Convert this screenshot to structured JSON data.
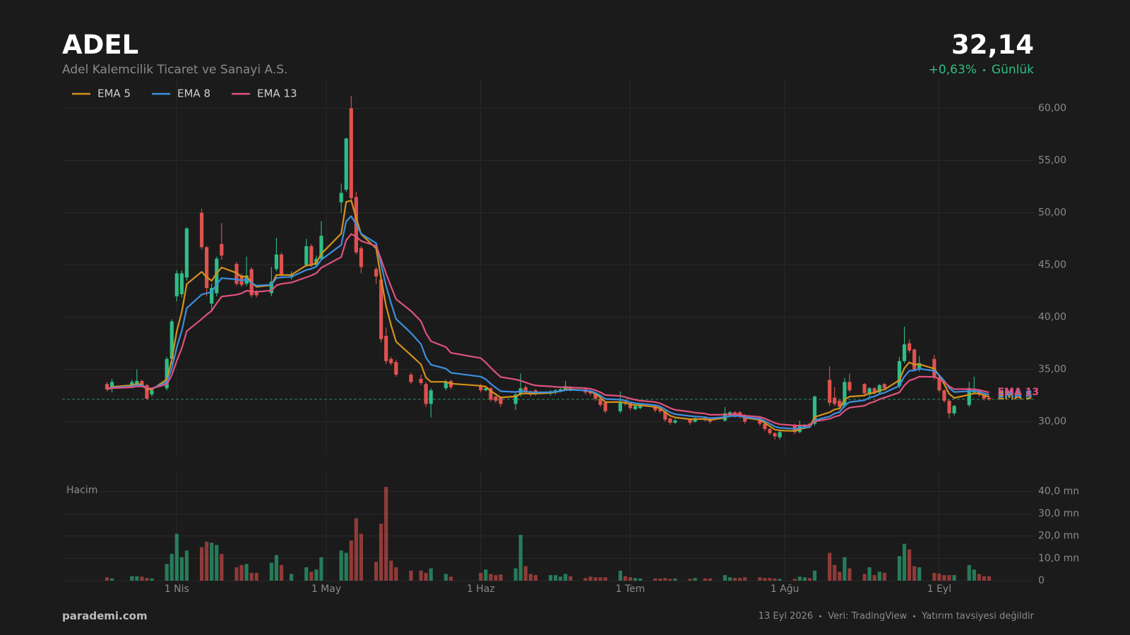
{
  "header": {
    "ticker": "ADEL",
    "company": "Adel Kalemcilik Ticaret ve Sanayi A.S.",
    "price": {
      "value": 32.14,
      "label": "32,14"
    },
    "change": "+0,63%",
    "period": "Günlük"
  },
  "footer": {
    "brand": "parademi.com",
    "date": "13 Eyl 2026",
    "source": "Veri: TradingView",
    "disclaimer": "Yatırım tavsiyesi değildir"
  },
  "chart_data": {
    "type": "candlestick",
    "up_color": "#2ebd85",
    "down_color": "#e0524f",
    "grid": true,
    "legend": "top-left",
    "xlim": [
      "03-09",
      "09-20"
    ],
    "xticks": [
      {
        "value": "04-01",
        "label": "1 Nis"
      },
      {
        "value": "05-01",
        "label": "1 May"
      },
      {
        "value": "06-01",
        "label": "1 Haz"
      },
      {
        "value": "07-01",
        "label": "1 Tem"
      },
      {
        "value": "08-01",
        "label": "1 Ağu"
      },
      {
        "value": "09-01",
        "label": "1 Eyl"
      }
    ],
    "ylim": [
      26.8,
      62.8
    ],
    "yticks": [
      {
        "value": 30,
        "label": "30,00"
      },
      {
        "value": 35,
        "label": "35,00"
      },
      {
        "value": 40,
        "label": "40,00"
      },
      {
        "value": 45,
        "label": "45,00"
      },
      {
        "value": 50,
        "label": "50,00"
      },
      {
        "value": 55,
        "label": "55,00"
      },
      {
        "value": 60,
        "label": "60,00"
      }
    ],
    "x": [
      "03-18",
      "03-19",
      "03-23",
      "03-24",
      "03-25",
      "03-26",
      "03-27",
      "03-30",
      "03-31",
      "04-01",
      "04-02",
      "04-03",
      "04-06",
      "04-07",
      "04-08",
      "04-09",
      "04-10",
      "04-13",
      "04-14",
      "04-15",
      "04-16",
      "04-17",
      "04-20",
      "04-21",
      "04-22",
      "04-24",
      "04-27",
      "04-28",
      "04-29",
      "04-30",
      "05-04",
      "05-05",
      "05-06",
      "05-07",
      "05-08",
      "05-11",
      "05-12",
      "05-13",
      "05-14",
      "05-15",
      "05-18",
      "05-20",
      "05-21",
      "05-22",
      "05-25",
      "05-26",
      "06-01",
      "06-02",
      "06-03",
      "06-04",
      "06-05",
      "06-08",
      "06-09",
      "06-10",
      "06-11",
      "06-12",
      "06-15",
      "06-16",
      "06-17",
      "06-18",
      "06-19",
      "06-22",
      "06-23",
      "06-24",
      "06-25",
      "06-26",
      "06-29",
      "06-30",
      "07-01",
      "07-02",
      "07-03",
      "07-06",
      "07-07",
      "07-08",
      "07-09",
      "07-10",
      "07-13",
      "07-14",
      "07-16",
      "07-17",
      "07-20",
      "07-21",
      "07-22",
      "07-23",
      "07-24",
      "07-27",
      "07-28",
      "07-29",
      "07-30",
      "07-31",
      "08-03",
      "08-04",
      "08-05",
      "08-06",
      "08-07",
      "08-10",
      "08-11",
      "08-12",
      "08-13",
      "08-14",
      "08-17",
      "08-18",
      "08-19",
      "08-20",
      "08-21",
      "08-24",
      "08-25",
      "08-26",
      "08-27",
      "08-28",
      "08-31",
      "09-01",
      "09-02",
      "09-03",
      "09-04",
      "09-07",
      "09-08",
      "09-09",
      "09-10",
      "09-11"
    ],
    "open": [
      33.6,
      33.2,
      33.4,
      33.6,
      33.9,
      33.5,
      32.6,
      33.2,
      36.0,
      42.0,
      42.2,
      43.8,
      50.0,
      46.7,
      41.3,
      42.3,
      47.0,
      45.1,
      44.0,
      43.2,
      44.6,
      42.4,
      42.3,
      44.6,
      46.0,
      43.8,
      45.0,
      46.8,
      45.0,
      45.6,
      51.0,
      52.2,
      60.0,
      51.5,
      46.6,
      44.6,
      43.6,
      38.2,
      36.0,
      35.7,
      34.5,
      34.1,
      33.6,
      31.7,
      33.2,
      33.9,
      33.4,
      33.0,
      33.2,
      32.4,
      32.3,
      31.7,
      32.6,
      33.3,
      32.9,
      33.0,
      32.7,
      32.8,
      32.9,
      33.1,
      33.3,
      33.1,
      32.9,
      32.7,
      32.2,
      31.8,
      31.0,
      31.9,
      31.8,
      31.2,
      31.3,
      31.4,
      31.2,
      31.0,
      30.3,
      29.9,
      30.2,
      30.0,
      30.4,
      30.3,
      30.1,
      30.6,
      30.9,
      30.9,
      30.6,
      30.3,
      29.8,
      29.3,
      28.9,
      28.5,
      29.7,
      29.0,
      29.5,
      29.8,
      29.8,
      34.0,
      32.3,
      32.0,
      31.5,
      33.8,
      33.6,
      32.6,
      33.2,
      32.8,
      33.6,
      33.4,
      35.8,
      37.5,
      36.9,
      35.0,
      36.0,
      34.2,
      33.0,
      32.0,
      30.8,
      31.6,
      32.8,
      33.0,
      32.6,
      32.3
    ],
    "high": [
      33.8,
      34.1,
      34.0,
      35.0,
      34.0,
      33.6,
      33.2,
      36.2,
      39.8,
      44.5,
      44.5,
      48.6,
      50.4,
      46.8,
      43.2,
      45.8,
      49.0,
      45.3,
      44.2,
      45.8,
      44.8,
      42.6,
      44.8,
      47.6,
      46.2,
      44.4,
      47.5,
      47.0,
      45.9,
      49.2,
      52.8,
      57.2,
      61.2,
      52.0,
      46.8,
      44.8,
      43.8,
      39.0,
      36.2,
      35.9,
      34.7,
      34.5,
      33.8,
      33.2,
      34.0,
      34.0,
      33.6,
      33.4,
      33.3,
      32.5,
      32.4,
      32.8,
      34.6,
      33.5,
      33.0,
      33.1,
      33.0,
      33.1,
      33.2,
      33.9,
      33.4,
      33.2,
      33.0,
      32.8,
      32.3,
      31.9,
      32.9,
      32.0,
      31.9,
      31.6,
      31.6,
      31.5,
      31.3,
      31.1,
      30.4,
      30.3,
      30.3,
      30.4,
      30.5,
      30.4,
      31.4,
      31.0,
      31.0,
      31.0,
      30.7,
      30.4,
      29.9,
      29.4,
      29.0,
      29.1,
      29.8,
      30.1,
      29.8,
      29.9,
      32.5,
      35.3,
      33.3,
      32.1,
      34.2,
      34.6,
      33.7,
      33.3,
      33.3,
      33.6,
      33.7,
      36.2,
      39.1,
      37.9,
      37.0,
      36.3,
      36.4,
      34.3,
      33.1,
      32.1,
      31.6,
      33.8,
      34.3,
      33.1,
      32.7,
      32.4
    ],
    "low": [
      32.9,
      32.8,
      33.2,
      33.4,
      33.3,
      32.1,
      32.4,
      33.0,
      35.5,
      41.5,
      41.9,
      43.5,
      46.5,
      42.0,
      40.6,
      42.0,
      45.5,
      43.0,
      42.9,
      43.0,
      41.9,
      41.9,
      42.0,
      44.4,
      43.8,
      43.6,
      44.8,
      44.8,
      44.8,
      45.4,
      50.0,
      52.0,
      51.0,
      46.0,
      44.2,
      43.2,
      37.6,
      35.5,
      35.4,
      34.3,
      33.6,
      33.5,
      31.4,
      30.4,
      33.0,
      33.1,
      32.8,
      32.9,
      31.9,
      31.8,
      31.4,
      31.1,
      32.4,
      32.6,
      32.4,
      32.5,
      32.5,
      32.6,
      32.8,
      33.0,
      32.9,
      32.6,
      32.5,
      32.0,
      31.4,
      30.8,
      30.8,
      31.5,
      31.1,
      31.1,
      31.2,
      30.9,
      30.8,
      30.0,
      29.7,
      29.8,
      29.7,
      29.9,
      30.0,
      29.8,
      30.0,
      30.4,
      30.4,
      30.3,
      29.8,
      29.6,
      29.1,
      28.7,
      28.3,
      28.3,
      28.8,
      28.9,
      29.3,
      29.4,
      29.6,
      31.5,
      31.5,
      31.2,
      31.3,
      32.8,
      32.5,
      32.4,
      32.6,
      32.6,
      33.0,
      33.2,
      35.6,
      36.6,
      34.8,
      34.8,
      34.0,
      32.8,
      31.8,
      30.3,
      30.6,
      31.4,
      32.6,
      32.4,
      32.0,
      32.0
    ],
    "close": [
      33.1,
      33.8,
      33.8,
      33.9,
      33.4,
      32.2,
      33.0,
      36.0,
      39.6,
      44.2,
      44.2,
      48.5,
      46.7,
      42.8,
      42.8,
      45.6,
      45.9,
      43.2,
      43.1,
      44.0,
      42.1,
      42.1,
      43.4,
      46.0,
      44.0,
      44.1,
      46.8,
      45.0,
      45.6,
      47.8,
      51.9,
      57.1,
      51.4,
      46.2,
      44.8,
      43.9,
      37.9,
      35.8,
      35.6,
      34.5,
      33.8,
      33.7,
      31.7,
      33.0,
      33.8,
      33.3,
      33.0,
      33.2,
      32.1,
      32.0,
      31.7,
      32.6,
      33.2,
      32.8,
      32.6,
      32.7,
      32.9,
      33.0,
      33.1,
      33.4,
      33.1,
      32.8,
      32.7,
      32.2,
      31.6,
      31.0,
      31.9,
      31.7,
      31.3,
      31.5,
      31.5,
      31.1,
      31.0,
      30.2,
      29.9,
      30.1,
      29.9,
      30.3,
      30.2,
      30.0,
      30.8,
      30.9,
      30.6,
      30.5,
      30.0,
      29.8,
      29.3,
      28.9,
      28.6,
      29.0,
      29.0,
      29.6,
      29.7,
      29.6,
      32.4,
      31.8,
      31.7,
      31.4,
      33.8,
      33.0,
      32.7,
      33.2,
      32.8,
      33.5,
      33.2,
      35.8,
      37.4,
      36.8,
      35.0,
      35.6,
      34.2,
      33.0,
      32.0,
      30.8,
      31.5,
      33.2,
      33.0,
      32.6,
      32.2,
      32.14
    ],
    "series": [
      {
        "name": "EMA 5",
        "color": "#d4921c",
        "values": [
          33.1,
          33.33,
          33.49,
          33.63,
          33.55,
          33.1,
          33.07,
          34.05,
          35.9,
          38.67,
          40.51,
          43.17,
          44.35,
          43.83,
          43.49,
          44.19,
          44.76,
          44.24,
          43.86,
          43.91,
          43.31,
          42.91,
          43.07,
          44.05,
          44.03,
          44.05,
          44.97,
          44.98,
          45.19,
          46.06,
          48.01,
          51.04,
          51.16,
          49.51,
          47.94,
          46.59,
          43.69,
          41.06,
          39.24,
          37.66,
          36.37,
          35.48,
          34.22,
          33.81,
          33.81,
          33.64,
          33.43,
          33.35,
          32.93,
          32.62,
          32.31,
          32.41,
          32.67,
          32.71,
          32.67,
          32.68,
          32.75,
          32.83,
          32.92,
          33.08,
          33.09,
          32.99,
          32.89,
          32.66,
          32.31,
          31.87,
          31.88,
          31.82,
          31.65,
          31.6,
          31.57,
          31.41,
          31.27,
          30.91,
          30.57,
          30.41,
          30.24,
          30.26,
          30.24,
          30.16,
          30.37,
          30.55,
          30.57,
          30.55,
          30.37,
          30.18,
          29.89,
          29.56,
          29.24,
          29.16,
          29.11,
          29.27,
          29.41,
          29.47,
          30.45,
          30.9,
          31.17,
          31.25,
          32.1,
          32.4,
          32.5,
          32.73,
          32.75,
          33.0,
          33.07,
          33.98,
          35.12,
          35.68,
          35.45,
          35.5,
          35.07,
          34.38,
          33.59,
          32.66,
          32.27,
          32.58,
          32.72,
          32.68,
          32.52,
          32.39
        ]
      },
      {
        "name": "EMA 8",
        "color": "#3d8fe0",
        "values": [
          33.1,
          33.26,
          33.38,
          33.5,
          33.48,
          33.2,
          33.16,
          33.79,
          35.08,
          37.12,
          38.7,
          40.87,
          42.16,
          42.3,
          42.41,
          43.12,
          43.74,
          43.62,
          43.51,
          43.62,
          43.28,
          43.02,
          43.11,
          43.75,
          43.81,
          43.87,
          44.52,
          44.63,
          44.85,
          45.5,
          46.92,
          49.18,
          49.67,
          48.9,
          47.99,
          47.08,
          45.04,
          42.99,
          41.35,
          39.83,
          38.49,
          37.42,
          36.15,
          35.45,
          35.08,
          34.68,
          34.31,
          34.06,
          33.62,
          33.26,
          32.91,
          32.84,
          32.92,
          32.89,
          32.83,
          32.8,
          32.82,
          32.86,
          32.91,
          33.02,
          33.04,
          32.99,
          32.93,
          32.77,
          32.51,
          32.17,
          32.11,
          32.02,
          31.86,
          31.78,
          31.72,
          31.58,
          31.45,
          31.17,
          30.89,
          30.72,
          30.54,
          30.49,
          30.43,
          30.33,
          30.43,
          30.53,
          30.55,
          30.54,
          30.42,
          30.28,
          30.06,
          29.8,
          29.53,
          29.41,
          29.32,
          29.38,
          29.45,
          29.48,
          30.13,
          30.5,
          30.77,
          30.91,
          31.55,
          31.87,
          32.05,
          32.3,
          32.41,
          32.65,
          32.77,
          33.44,
          34.32,
          34.87,
          34.9,
          35.06,
          34.87,
          34.45,
          33.91,
          33.22,
          32.84,
          32.92,
          32.94,
          32.86,
          32.71,
          32.58
        ]
      },
      {
        "name": "EMA 13",
        "color": "#e0527f",
        "values": [
          33.1,
          33.2,
          33.29,
          33.38,
          33.38,
          33.21,
          33.18,
          33.58,
          34.44,
          35.83,
          37.03,
          38.67,
          39.82,
          40.25,
          40.61,
          41.32,
          41.97,
          42.15,
          42.29,
          42.53,
          42.47,
          42.42,
          42.56,
          43.05,
          43.19,
          43.32,
          43.82,
          43.99,
          44.22,
          44.73,
          45.76,
          47.38,
          47.96,
          47.71,
          47.29,
          46.81,
          45.54,
          44.15,
          42.93,
          41.73,
          40.6,
          39.61,
          38.48,
          37.7,
          37.14,
          36.59,
          36.08,
          35.67,
          35.16,
          34.71,
          34.28,
          34.04,
          33.92,
          33.76,
          33.59,
          33.46,
          33.38,
          33.33,
          33.3,
          33.31,
          33.28,
          33.21,
          33.14,
          33.01,
          32.81,
          32.55,
          32.46,
          32.35,
          32.2,
          32.1,
          32.01,
          31.88,
          31.75,
          31.53,
          31.3,
          31.13,
          30.95,
          30.86,
          30.77,
          30.66,
          30.68,
          30.71,
          30.69,
          30.66,
          30.57,
          30.46,
          30.29,
          30.09,
          29.88,
          29.75,
          29.64,
          29.63,
          29.64,
          29.63,
          30.02,
          30.27,
          30.47,
          30.6,
          31.06,
          31.34,
          31.53,
          31.77,
          31.92,
          32.15,
          32.3,
          32.8,
          33.46,
          33.94,
          34.09,
          34.31,
          34.29,
          34.11,
          33.81,
          33.38,
          33.11,
          33.12,
          33.1,
          33.03,
          32.91,
          32.8
        ]
      }
    ],
    "volume": {
      "label": "Hacim",
      "ylim": [
        0,
        49
      ],
      "yticks": [
        0,
        {
          "value": 10,
          "label": "10,0 mn"
        },
        {
          "value": 20,
          "label": "20,0 mn"
        },
        {
          "value": 30,
          "label": "30,0 mn"
        },
        {
          "value": 40,
          "label": "40,0 mn"
        }
      ],
      "values": [
        1.5,
        1.0,
        2,
        2,
        1.8,
        1.2,
        1.0,
        7.5,
        12,
        21,
        10.5,
        13.5,
        15,
        17.5,
        17,
        16,
        12,
        6,
        7,
        7.5,
        3.5,
        3.5,
        8,
        11.5,
        7,
        3,
        6,
        4,
        5,
        10.5,
        13.5,
        12.5,
        18,
        28,
        21,
        8.5,
        25.5,
        42,
        9,
        6,
        4.5,
        4.5,
        3.5,
        5.5,
        3,
        1.8,
        3.5,
        5,
        3,
        2.5,
        2.8,
        5.5,
        20.5,
        6.5,
        3,
        2.5,
        2.5,
        2.5,
        1.8,
        3,
        2,
        1.2,
        1.8,
        1.5,
        1.5,
        1.5,
        4.5,
        2,
        1.5,
        1.2,
        1,
        1,
        1,
        1.2,
        0.8,
        1,
        0.8,
        1.2,
        1,
        1,
        2.5,
        1.5,
        1.2,
        1.2,
        1.5,
        1.5,
        1.2,
        1.2,
        1,
        0.8,
        0.8,
        1.8,
        1.5,
        1.2,
        4.5,
        12.5,
        7,
        4,
        10.5,
        5.5,
        3,
        6,
        2.5,
        4,
        3.5,
        11,
        16.5,
        14,
        6.5,
        6,
        3.5,
        3.2,
        2.5,
        2.5,
        2.5,
        7,
        5,
        3,
        2,
        2
      ]
    }
  }
}
